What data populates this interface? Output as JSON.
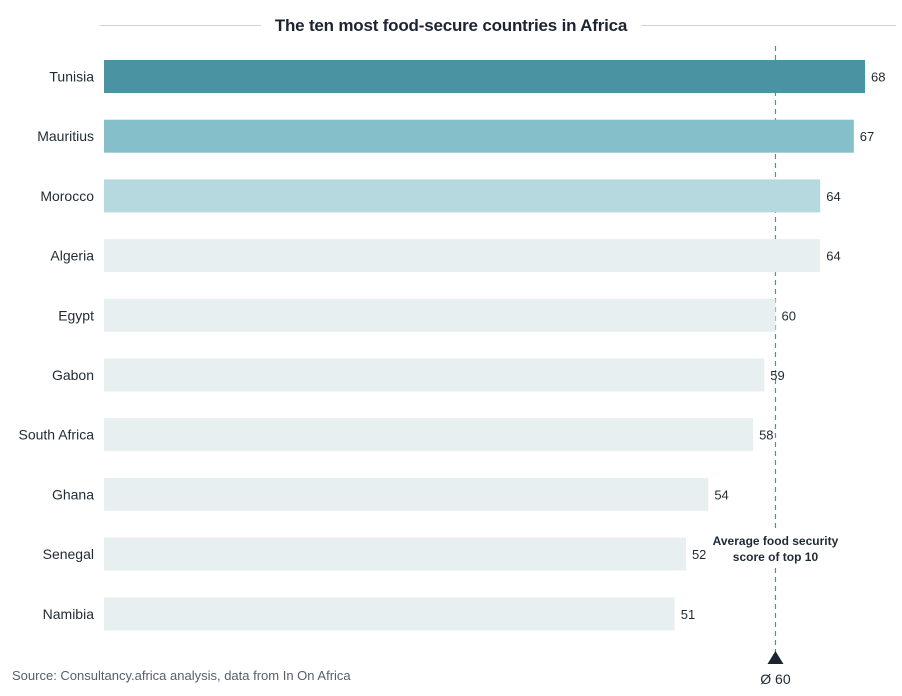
{
  "header": {
    "title": "The ten most food-secure countries in Africa"
  },
  "footer": {
    "source": "Source: Consultancy.africa analysis, data from In On Africa"
  },
  "average": {
    "label_line1": "Average food security",
    "label_line2": "score of top 10",
    "marker_label": "Ø 60",
    "value": 60
  },
  "colors": {
    "highlight_1": "#4a93a2",
    "highlight_2": "#84bfca",
    "highlight_3": "#b6d9e0",
    "default_bar": "#e8eff1",
    "reference_line": "#4a93a2",
    "title_rule": "#c9d3d8"
  },
  "chart_data": {
    "type": "bar",
    "orientation": "horizontal",
    "title": "The ten most food-secure countries in Africa",
    "categories": [
      "Tunisia",
      "Mauritius",
      "Morocco",
      "Algeria",
      "Egypt",
      "Gabon",
      "South Africa",
      "Ghana",
      "Senegal",
      "Namibia"
    ],
    "values": [
      68,
      67,
      64,
      64,
      60,
      59,
      58,
      54,
      52,
      51
    ],
    "bar_colors": [
      "#4a93a2",
      "#84bfca",
      "#b6d9e0",
      "#e8eff1",
      "#e8eff1",
      "#e8eff1",
      "#e8eff1",
      "#e8eff1",
      "#e8eff1",
      "#e8eff1"
    ],
    "reference_line": {
      "value": 60,
      "label": "Ø 60"
    },
    "grid": false,
    "legend": "none"
  }
}
